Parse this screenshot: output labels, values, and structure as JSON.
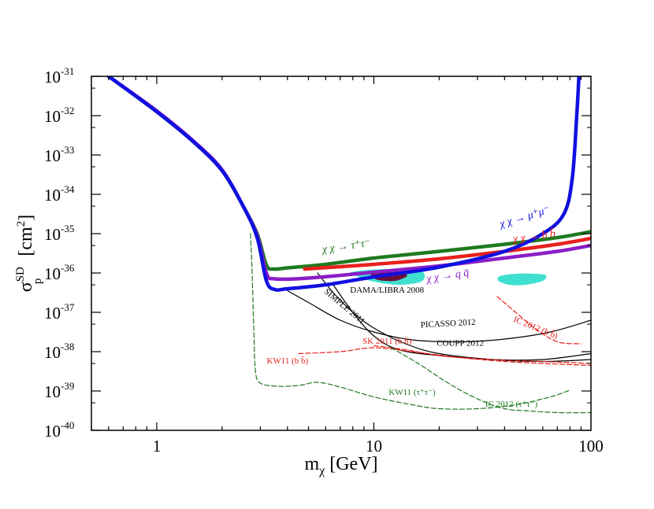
{
  "chart_data": {
    "type": "line",
    "xscale": "log",
    "yscale": "log",
    "xlim": [
      0.5,
      100
    ],
    "ylim": [
      1e-40,
      1e-31
    ],
    "xlabel": "m",
    "xlabel_sub": "χ",
    "xlabel_unit": " [GeV]",
    "ylabel": "σ",
    "ylabel_sup": "SD",
    "ylabel_sub": "p",
    "ylabel_unit": "[cm",
    "ylabel_unit_sup": "2",
    "ylabel_unit_close": "]",
    "x_ticks": [
      {
        "value": 1,
        "label": "1"
      },
      {
        "value": 10,
        "label": "10"
      },
      {
        "value": 100,
        "label": "100"
      }
    ],
    "y_ticks": [
      {
        "value": -31,
        "base": "10",
        "exp": "-31"
      },
      {
        "value": -32,
        "base": "10",
        "exp": "-32"
      },
      {
        "value": -33,
        "base": "10",
        "exp": "-33"
      },
      {
        "value": -34,
        "base": "10",
        "exp": "-34"
      },
      {
        "value": -35,
        "base": "10",
        "exp": "-35"
      },
      {
        "value": -36,
        "base": "10",
        "exp": "-36"
      },
      {
        "value": -37,
        "base": "10",
        "exp": "-37"
      },
      {
        "value": -38,
        "base": "10",
        "exp": "-38"
      },
      {
        "value": -39,
        "base": "10",
        "exp": "-39"
      },
      {
        "value": -40,
        "base": "10",
        "exp": "-40"
      }
    ],
    "regions": [
      {
        "name": "DAMA/LIBRA 2008 (3σ, low mass)",
        "color": "#40e0d0",
        "points": [
          [
            8.0,
            -35.97
          ],
          [
            9.5,
            -35.92
          ],
          [
            12,
            -35.9
          ],
          [
            15,
            -35.93
          ],
          [
            17,
            -36.0
          ],
          [
            16.5,
            -36.22
          ],
          [
            13,
            -36.3
          ],
          [
            10,
            -36.22
          ],
          [
            8.5,
            -36.1
          ],
          [
            7.8,
            -36.02
          ]
        ]
      },
      {
        "name": "DAMA/LIBRA 2008 (3σ, high mass)",
        "color": "#40e0d0",
        "points": [
          [
            38,
            -36.08
          ],
          [
            45,
            -36.02
          ],
          [
            55,
            -36.02
          ],
          [
            62,
            -36.06
          ],
          [
            60,
            -36.2
          ],
          [
            50,
            -36.3
          ],
          [
            42,
            -36.3
          ],
          [
            37.5,
            -36.2
          ]
        ]
      },
      {
        "name": "DAMA/LIBRA 2008 (90%)",
        "color": "#6b0f3a",
        "points": [
          [
            9.8,
            -35.98
          ],
          [
            11.5,
            -35.95
          ],
          [
            13.5,
            -35.98
          ],
          [
            14.2,
            -36.08
          ],
          [
            12.5,
            -36.2
          ],
          [
            10.5,
            -36.18
          ],
          [
            9.8,
            -36.08
          ]
        ]
      }
    ],
    "series": [
      {
        "name": "χχ→τ⁺τ⁻",
        "color": "#1f7a1f",
        "width": 4.5,
        "dash": "",
        "points": [
          [
            0.6,
            -31.0
          ],
          [
            1.0,
            -31.9
          ],
          [
            1.5,
            -32.7
          ],
          [
            2.0,
            -33.4
          ],
          [
            2.5,
            -34.3
          ],
          [
            2.9,
            -35.0
          ],
          [
            3.2,
            -35.8
          ],
          [
            3.45,
            -35.9
          ],
          [
            4.0,
            -35.87
          ],
          [
            6,
            -35.78
          ],
          [
            10,
            -35.62
          ],
          [
            20,
            -35.45
          ],
          [
            40,
            -35.27
          ],
          [
            70,
            -35.1
          ],
          [
            100,
            -34.95
          ]
        ]
      },
      {
        "name": "χχ→bb̄",
        "color": "#e8201c",
        "width": 4.5,
        "dash": "",
        "points": [
          [
            4.8,
            -35.9
          ],
          [
            7,
            -35.84
          ],
          [
            10,
            -35.78
          ],
          [
            20,
            -35.64
          ],
          [
            40,
            -35.45
          ],
          [
            70,
            -35.27
          ],
          [
            100,
            -35.12
          ]
        ]
      },
      {
        "name": "χχ→qq̄",
        "color": "#8b1ec8",
        "width": 4.5,
        "dash": "",
        "points": [
          [
            0.6,
            -31.0
          ],
          [
            1.0,
            -31.88
          ],
          [
            1.5,
            -32.68
          ],
          [
            2.0,
            -33.38
          ],
          [
            2.5,
            -34.3
          ],
          [
            2.9,
            -35.05
          ],
          [
            3.2,
            -36.0
          ],
          [
            3.5,
            -36.15
          ],
          [
            5,
            -36.13
          ],
          [
            10,
            -35.98
          ],
          [
            20,
            -35.82
          ],
          [
            40,
            -35.62
          ],
          [
            70,
            -35.45
          ],
          [
            100,
            -35.3
          ]
        ]
      },
      {
        "name": "χχ→μ⁺μ⁻",
        "color": "#1010e0",
        "width": 4.5,
        "dash": "",
        "points": [
          [
            0.6,
            -31.0
          ],
          [
            1.0,
            -31.9
          ],
          [
            1.5,
            -32.7
          ],
          [
            2.0,
            -33.4
          ],
          [
            2.5,
            -34.3
          ],
          [
            2.9,
            -35.1
          ],
          [
            3.2,
            -36.2
          ],
          [
            3.5,
            -36.42
          ],
          [
            4,
            -36.4
          ],
          [
            6,
            -36.3
          ],
          [
            10,
            -36.1
          ],
          [
            20,
            -35.85
          ],
          [
            40,
            -35.45
          ],
          [
            60,
            -35.0
          ],
          [
            75,
            -34.5
          ],
          [
            82,
            -33.6
          ],
          [
            86,
            -32.0
          ],
          [
            88,
            -31.0
          ]
        ]
      },
      {
        "name": "SIMPLE 2011",
        "color": "#000000",
        "width": 1.2,
        "dash": "",
        "points": [
          [
            5.5,
            -36.0
          ],
          [
            6.5,
            -36.5
          ],
          [
            8,
            -37.0
          ],
          [
            10,
            -37.4
          ],
          [
            14,
            -37.8
          ],
          [
            20,
            -38.05
          ],
          [
            35,
            -38.2
          ],
          [
            60,
            -38.25
          ],
          [
            100,
            -38.2
          ]
        ]
      },
      {
        "name": "PICASSO 2012",
        "color": "#000000",
        "width": 1.2,
        "dash": "",
        "points": [
          [
            4.0,
            -36.45
          ],
          [
            5,
            -36.75
          ],
          [
            7,
            -37.2
          ],
          [
            10,
            -37.5
          ],
          [
            15,
            -37.7
          ],
          [
            25,
            -37.75
          ],
          [
            40,
            -37.68
          ],
          [
            65,
            -37.5
          ],
          [
            100,
            -37.2
          ]
        ]
      },
      {
        "name": "COUPP 2012",
        "color": "#000000",
        "width": 1.2,
        "dash": "",
        "points": [
          [
            6.5,
            -36.3
          ],
          [
            8,
            -37.0
          ],
          [
            10,
            -37.6
          ],
          [
            13,
            -37.95
          ],
          [
            20,
            -38.1
          ],
          [
            35,
            -38.2
          ],
          [
            60,
            -38.2
          ],
          [
            100,
            -38.05
          ]
        ]
      },
      {
        "name": "IC 2012 (bb̄)",
        "color": "#e8201c",
        "width": 1.2,
        "dash": "6,3",
        "points": [
          [
            37,
            -36.6
          ],
          [
            45,
            -37.0
          ],
          [
            55,
            -37.4
          ],
          [
            70,
            -37.75
          ],
          [
            90,
            -37.8
          ]
        ]
      },
      {
        "name": "SK 2011 (bb̄)",
        "color": "#e8201c",
        "width": 1.2,
        "dash": "6,3",
        "points": [
          [
            4.5,
            -38.05
          ],
          [
            7,
            -38.0
          ],
          [
            10,
            -37.9
          ],
          [
            15,
            -38.0
          ],
          [
            25,
            -38.15
          ],
          [
            40,
            -38.25
          ],
          [
            60,
            -38.3
          ],
          [
            100,
            -38.35
          ]
        ]
      },
      {
        "name": "KW11 (bb̄)",
        "color": "#e8201c",
        "width": 1.2,
        "dash": "6,3",
        "points": [
          [
            10,
            -37.85
          ],
          [
            14,
            -37.95
          ],
          [
            20,
            -38.1
          ],
          [
            35,
            -38.2
          ],
          [
            60,
            -38.25
          ],
          [
            100,
            -38.3
          ]
        ]
      },
      {
        "name": "KW11 (τ⁺τ⁻)",
        "color": "#1f7a1f",
        "width": 1.2,
        "dash": "6,3",
        "points": [
          [
            2.7,
            -35.0
          ],
          [
            2.75,
            -36.0
          ],
          [
            2.8,
            -37.5
          ],
          [
            2.85,
            -38.5
          ],
          [
            3.0,
            -38.8
          ],
          [
            3.6,
            -38.88
          ],
          [
            4.5,
            -38.86
          ],
          [
            5.5,
            -38.78
          ],
          [
            7,
            -38.9
          ],
          [
            10,
            -39.15
          ],
          [
            15,
            -39.35
          ],
          [
            20,
            -39.45
          ],
          [
            30,
            -39.45
          ],
          [
            45,
            -39.35
          ],
          [
            65,
            -39.15
          ],
          [
            80,
            -38.98
          ]
        ]
      },
      {
        "name": "IC 2012 (τ⁺τ⁻)",
        "color": "#1f7a1f",
        "width": 1.2,
        "dash": "6,3",
        "points": [
          [
            12,
            -37.9
          ],
          [
            16,
            -38.3
          ],
          [
            22,
            -38.8
          ],
          [
            30,
            -39.2
          ],
          [
            40,
            -39.45
          ],
          [
            50,
            -39.5
          ],
          [
            70,
            -39.55
          ],
          [
            100,
            -39.55
          ]
        ]
      }
    ],
    "annotations": [
      {
        "text": "χ χ → τ⁺τ⁻",
        "color": "#1f7a1f",
        "x": 7.5,
        "y": -35.4,
        "angle": -8,
        "size": "big"
      },
      {
        "text": "χ χ → μ⁺μ⁻",
        "color": "#1010e0",
        "x": 50,
        "y": -34.65,
        "angle": -17,
        "size": "big"
      },
      {
        "text": "χ χ → b b̄",
        "color": "#e8201c",
        "x": 55,
        "y": -35.15,
        "angle": -8,
        "size": "big"
      },
      {
        "text": "χ χ → q q̄",
        "color": "#8b1ec8",
        "x": 22,
        "y": -36.15,
        "angle": -9,
        "size": "big"
      },
      {
        "text": "DAMA/LIBRA 2008",
        "color": "#000000",
        "x": 11.5,
        "y": -36.5,
        "angle": 0,
        "size": "small"
      },
      {
        "text": "SIMPLE 2011",
        "color": "#000000",
        "x": 7.2,
        "y": -36.9,
        "angle": 40,
        "size": "small"
      },
      {
        "text": "PICASSO 2012",
        "color": "#000000",
        "x": 22,
        "y": -37.35,
        "angle": -3,
        "size": "small"
      },
      {
        "text": "COUPP 2012",
        "color": "#000000",
        "x": 25,
        "y": -37.85,
        "angle": 0,
        "size": "small"
      },
      {
        "text": "IC 2012 (b b̄)",
        "color": "#e8201c",
        "x": 55,
        "y": -37.45,
        "angle": 22,
        "size": "small"
      },
      {
        "text": "SK 2011 (b b̄)",
        "color": "#e8201c",
        "x": 11.5,
        "y": -37.8,
        "angle": 0,
        "size": "small"
      },
      {
        "text": "KW11 (b b̄)",
        "color": "#e8201c",
        "x": 4.0,
        "y": -38.3,
        "angle": 0,
        "size": "small"
      },
      {
        "text": "KW11 (τ⁺τ⁻)",
        "color": "#1f7a1f",
        "x": 15,
        "y": -39.1,
        "angle": 0,
        "size": "small"
      },
      {
        "text": "IC 2012 (τ⁺τ⁻)",
        "color": "#1f7a1f",
        "x": 43,
        "y": -39.4,
        "angle": 0,
        "size": "small"
      }
    ]
  }
}
